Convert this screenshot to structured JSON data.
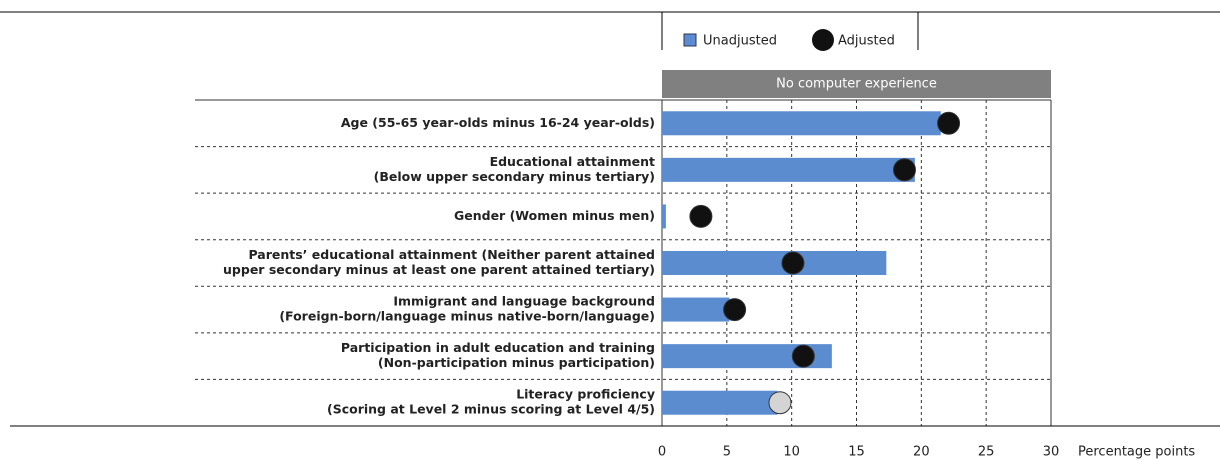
{
  "chart_data": {
    "type": "bar-dot",
    "orientation": "horizontal",
    "panel_title": "No computer experience",
    "x_label": "Percentage points",
    "categories": [
      [
        "Age (55-65 year-olds minus 16-24 year-olds)"
      ],
      [
        "Educational attainment",
        "(Below upper secondary minus tertiary)"
      ],
      [
        "Gender (Women minus men)"
      ],
      [
        "Parents’ educational attainment (Neither parent attained",
        "upper secondary minus at least one parent attained tertiary)"
      ],
      [
        "Immigrant and language background",
        "(Foreign-born/language minus native-born/language)"
      ],
      [
        "Participation in adult education and training",
        "(Non-participation minus participation)"
      ],
      [
        "Literacy proficiency",
        "(Scoring at Level 2 minus scoring at Level 4/5)"
      ]
    ],
    "series": [
      {
        "name": "Unadjusted",
        "color": "#5b8ccf",
        "values": [
          21.5,
          19.5,
          0.3,
          17.3,
          5.2,
          13.1,
          8.9
        ]
      },
      {
        "name": "Adjusted",
        "color": "#111111",
        "colors": [
          "#111111",
          "#111111",
          "#111111",
          "#111111",
          "#111111",
          "#111111",
          "#d4d4d4"
        ],
        "values": [
          22.1,
          18.7,
          3.0,
          10.1,
          5.6,
          10.9,
          9.1
        ]
      }
    ],
    "xlim": [
      0,
      30
    ],
    "xticks": [
      0,
      5,
      10,
      15,
      20,
      25,
      30
    ],
    "grid": true
  }
}
